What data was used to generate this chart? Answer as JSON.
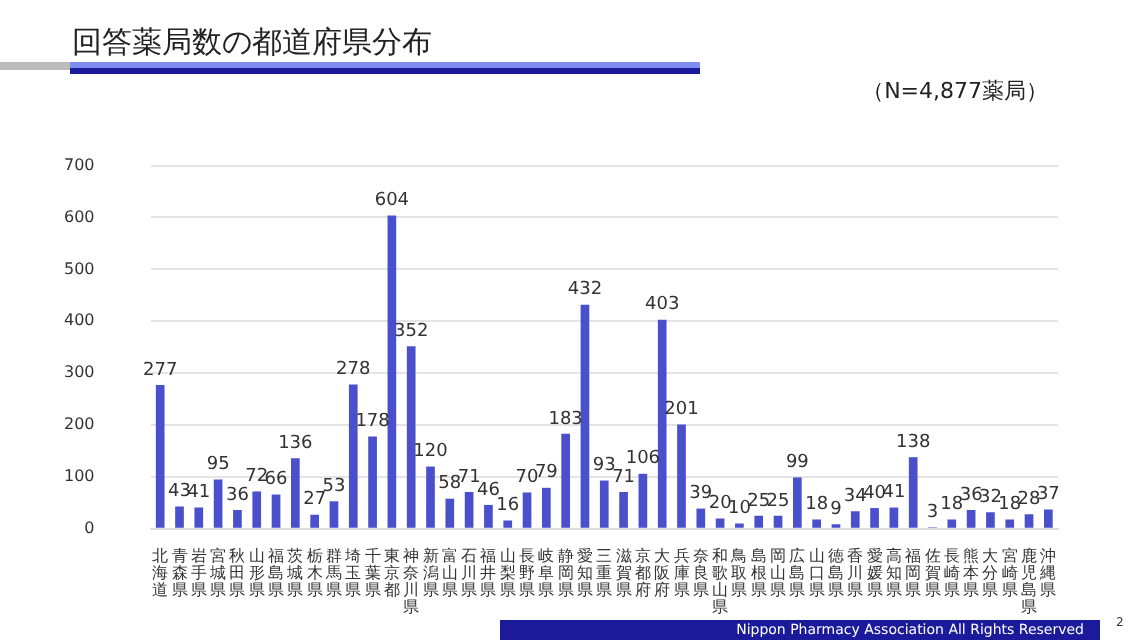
{
  "chart_data": {
    "type": "bar",
    "title": "回答薬局数の都道府県分布",
    "subtitle": "（N=4,877薬局）",
    "categories": [
      "北海道",
      "青森県",
      "岩手県",
      "宮城県",
      "秋田県",
      "山形県",
      "福島県",
      "茨城県",
      "栃木県",
      "群馬県",
      "埼玉県",
      "千葉県",
      "東京都",
      "神奈川県",
      "新潟県",
      "富山県",
      "石川県",
      "福井県",
      "山梨県",
      "長野県",
      "岐阜県",
      "静岡県",
      "愛知県",
      "三重県",
      "滋賀県",
      "京都府",
      "大阪府",
      "兵庫県",
      "奈良県",
      "和歌山県",
      "鳥取県",
      "島根県",
      "岡山県",
      "広島県",
      "山口県",
      "徳島県",
      "香川県",
      "愛媛県",
      "高知県",
      "福岡県",
      "佐賀県",
      "長崎県",
      "熊本県",
      "大分県",
      "宮崎県",
      "鹿児島県",
      "沖縄県"
    ],
    "values": [
      277,
      43,
      41,
      95,
      36,
      72,
      66,
      136,
      27,
      53,
      278,
      178,
      604,
      352,
      120,
      58,
      71,
      46,
      16,
      70,
      79,
      183,
      432,
      93,
      71,
      106,
      403,
      201,
      39,
      20,
      10,
      25,
      25,
      99,
      18,
      9,
      34,
      40,
      41,
      138,
      3,
      18,
      36,
      32,
      18,
      28,
      37
    ],
    "color": "#4a4fcc",
    "ylim": [
      0,
      700
    ],
    "yticks": [
      0,
      100,
      200,
      300,
      400,
      500,
      600,
      700
    ],
    "grid": "y",
    "data_labels": true,
    "legend": false,
    "annotations": [
      "Nippon Pharmacy Association All Rights Reserved",
      "2"
    ]
  }
}
